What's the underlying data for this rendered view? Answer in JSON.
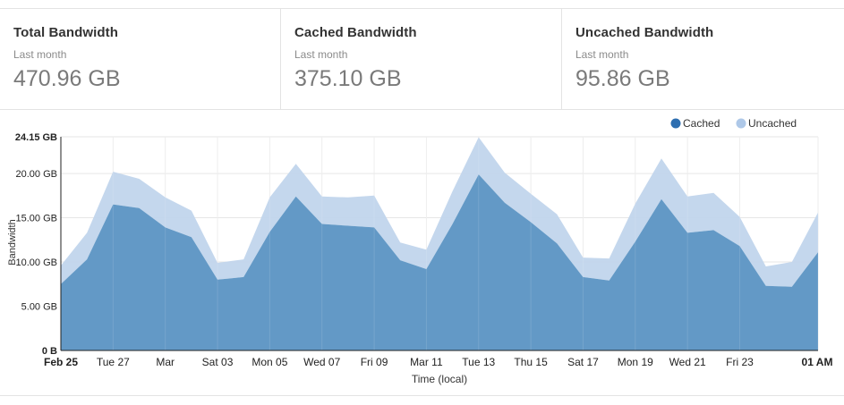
{
  "stats": [
    {
      "title": "Total Bandwidth",
      "period": "Last month",
      "value": "470.96 GB"
    },
    {
      "title": "Cached Bandwidth",
      "period": "Last month",
      "value": "375.10 GB"
    },
    {
      "title": "Uncached Bandwidth",
      "period": "Last month",
      "value": "95.86 GB"
    }
  ],
  "colors": {
    "cached": "#6399c6",
    "uncached": "#c1d5ec",
    "cached_legend": "#2d6eb0",
    "uncached_legend": "#aec8e8"
  },
  "chart_data": {
    "type": "area",
    "stacked": true,
    "xlabel": "Time (local)",
    "ylabel": "Bandwidth",
    "ylim": [
      0,
      24.15
    ],
    "y_ticks": [
      {
        "value": 0,
        "label": "0 B"
      },
      {
        "value": 5,
        "label": "5.00 GB"
      },
      {
        "value": 10,
        "label": "10.00 GB"
      },
      {
        "value": 15,
        "label": "15.00 GB"
      },
      {
        "value": 20,
        "label": "20.00 GB"
      },
      {
        "value": 24.15,
        "label": "24.15 GB"
      }
    ],
    "x_ticks": [
      {
        "index": 0,
        "label": "Feb 25"
      },
      {
        "index": 2,
        "label": "Tue 27"
      },
      {
        "index": 4,
        "label": "Mar"
      },
      {
        "index": 6,
        "label": "Sat 03"
      },
      {
        "index": 8,
        "label": "Mon 05"
      },
      {
        "index": 10,
        "label": "Wed 07"
      },
      {
        "index": 12,
        "label": "Fri 09"
      },
      {
        "index": 14,
        "label": "Mar 11"
      },
      {
        "index": 16,
        "label": "Tue 13"
      },
      {
        "index": 18,
        "label": "Thu 15"
      },
      {
        "index": 20,
        "label": "Sat 17"
      },
      {
        "index": 22,
        "label": "Mon 19"
      },
      {
        "index": 24,
        "label": "Wed 21"
      },
      {
        "index": 26,
        "label": "Fri 23"
      },
      {
        "index": 29,
        "label": "01 AM"
      }
    ],
    "x": [
      "Feb 25",
      "Feb 26",
      "Feb 27",
      "Feb 28",
      "Mar 01",
      "Mar 02",
      "Mar 03",
      "Mar 04",
      "Mar 05",
      "Mar 06",
      "Mar 07",
      "Mar 08",
      "Mar 09",
      "Mar 10",
      "Mar 11",
      "Mar 12",
      "Mar 13",
      "Mar 14",
      "Mar 15",
      "Mar 16",
      "Mar 17",
      "Mar 18",
      "Mar 19",
      "Mar 20",
      "Mar 21",
      "Mar 22",
      "Mar 23",
      "Mar 24",
      "Mar 25",
      "01 AM"
    ],
    "legend": {
      "position": "top-right"
    },
    "grid": true,
    "series": [
      {
        "name": "Cached",
        "values": [
          7.5,
          10.3,
          16.5,
          16.1,
          13.9,
          12.8,
          8.0,
          8.3,
          13.4,
          17.4,
          14.3,
          14.1,
          13.9,
          10.2,
          9.2,
          14.3,
          19.9,
          16.7,
          14.5,
          12.1,
          8.3,
          7.9,
          12.3,
          17.1,
          13.3,
          13.6,
          11.8,
          7.3,
          7.2,
          11.1
        ]
      },
      {
        "name": "Uncached",
        "values": [
          2.1,
          3.0,
          3.7,
          3.3,
          3.4,
          3.0,
          1.9,
          2.0,
          3.9,
          3.7,
          3.1,
          3.2,
          3.6,
          2.0,
          2.2,
          3.7,
          4.2,
          3.4,
          3.2,
          3.3,
          2.2,
          2.5,
          4.3,
          4.6,
          4.1,
          4.2,
          3.3,
          2.2,
          2.8,
          4.5
        ]
      }
    ]
  }
}
